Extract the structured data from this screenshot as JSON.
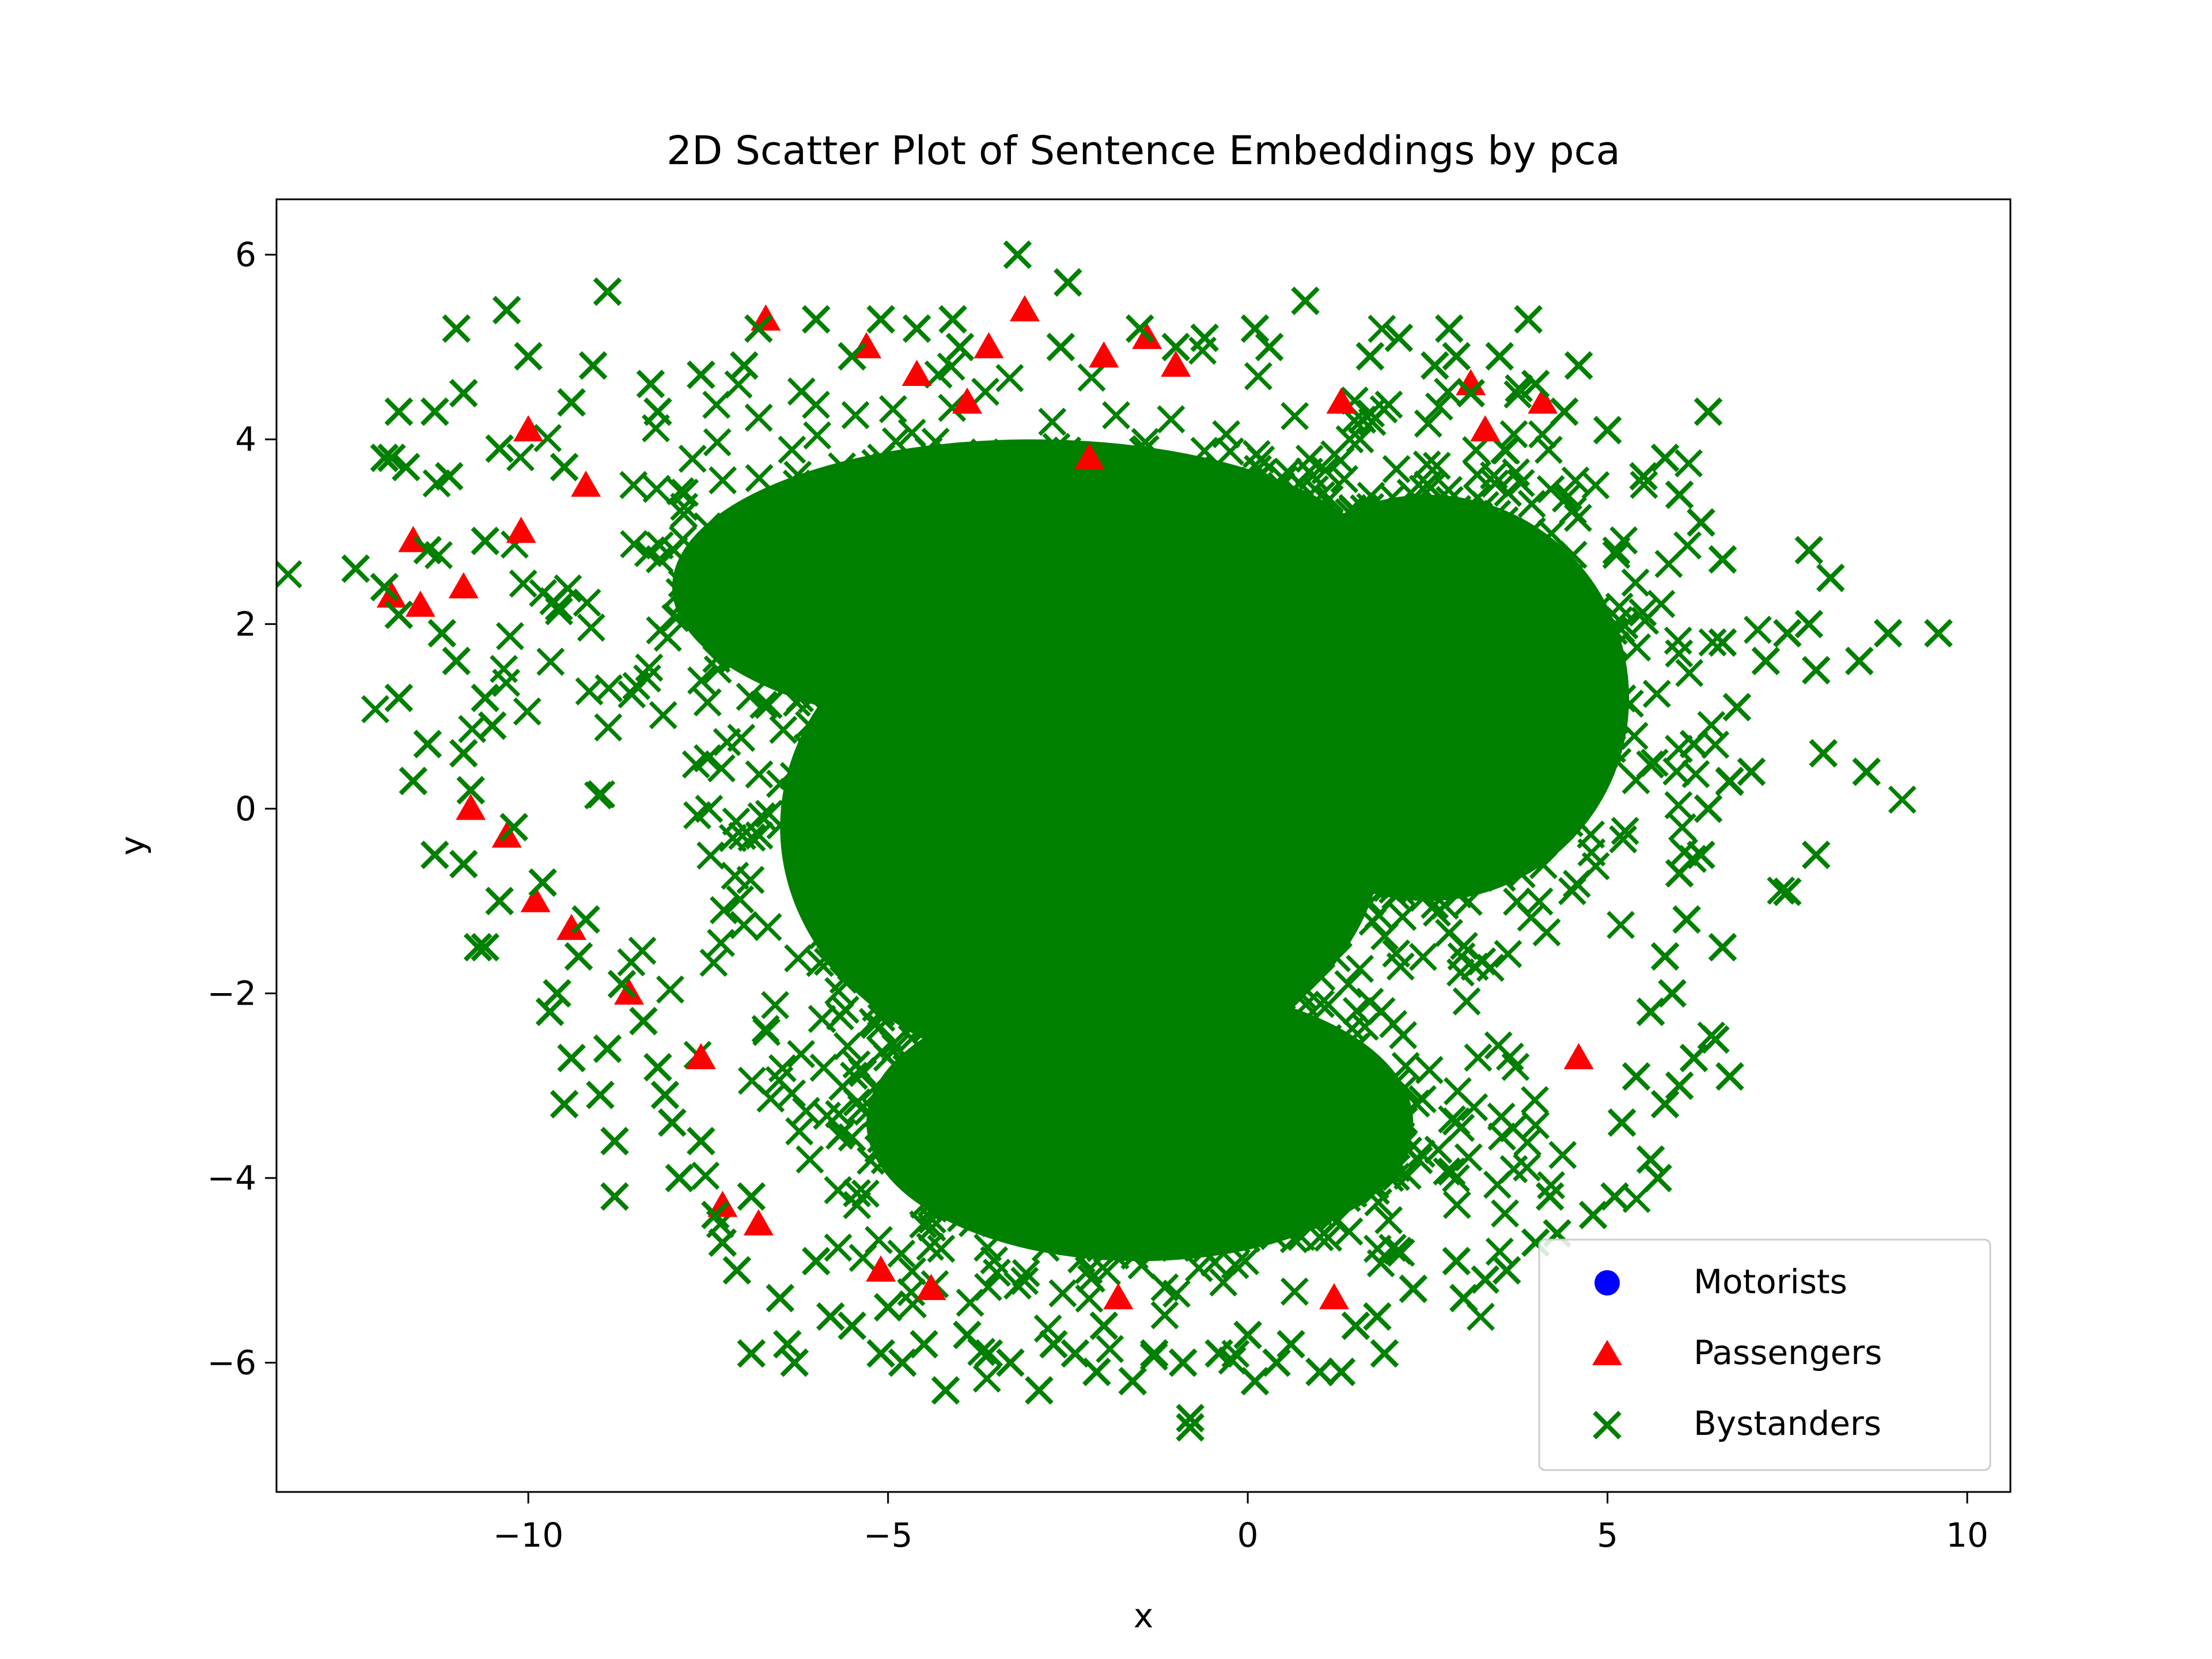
{
  "chart_data": {
    "type": "scatter",
    "title": "2D Scatter Plot of Sentence Embeddings by pca",
    "xlabel": "x",
    "ylabel": "y",
    "xlim": [
      -13.5,
      10.6
    ],
    "ylim": [
      -7.4,
      6.6
    ],
    "x_ticks": [
      -10,
      -5,
      0,
      5,
      10
    ],
    "x_tick_labels": [
      "−10",
      "−5",
      "0",
      "5",
      "10"
    ],
    "y_ticks": [
      -6,
      -4,
      -2,
      0,
      2,
      4,
      6
    ],
    "y_tick_labels": [
      "−6",
      "−4",
      "−2",
      "0",
      "2",
      "4",
      "6"
    ],
    "grid": false,
    "legend_position": "bottom-right",
    "series": [
      {
        "name": "Motorists",
        "marker": "circle",
        "color": "#0000ff",
        "points": []
      },
      {
        "name": "Passengers",
        "marker": "triangle",
        "color": "#ff0000",
        "points": [
          [
            -11.9,
            2.3
          ],
          [
            -11.5,
            2.2
          ],
          [
            -11.6,
            2.9
          ],
          [
            -10.9,
            2.4
          ],
          [
            -10.0,
            4.1
          ],
          [
            -10.1,
            3.0
          ],
          [
            -9.2,
            3.5
          ],
          [
            -6.7,
            5.3
          ],
          [
            -5.3,
            5.0
          ],
          [
            -4.6,
            4.7
          ],
          [
            -3.9,
            4.4
          ],
          [
            -3.6,
            5.0
          ],
          [
            -3.1,
            5.4
          ],
          [
            -2.0,
            4.9
          ],
          [
            -1.4,
            5.1
          ],
          [
            -1.0,
            4.8
          ],
          [
            -10.8,
            0.0
          ],
          [
            -10.3,
            -0.3
          ],
          [
            -9.9,
            -1.0
          ],
          [
            -9.4,
            -1.3
          ],
          [
            -8.6,
            -2.0
          ],
          [
            -7.6,
            -2.7
          ],
          [
            -7.3,
            -4.3
          ],
          [
            -6.8,
            -4.5
          ],
          [
            -5.1,
            -5.0
          ],
          [
            -4.4,
            -5.2
          ],
          [
            -1.8,
            -5.3
          ],
          [
            1.3,
            4.4
          ],
          [
            3.1,
            4.6
          ],
          [
            3.3,
            4.1
          ],
          [
            4.1,
            4.4
          ],
          [
            4.6,
            -2.7
          ],
          [
            1.2,
            -5.3
          ],
          [
            -2.2,
            3.8
          ]
        ]
      },
      {
        "name": "Bystanders",
        "marker": "x",
        "color": "#008000",
        "points": [
          [
            -12.4,
            2.6
          ],
          [
            -12.0,
            3.8
          ],
          [
            -11.9,
            3.8
          ],
          [
            -11.8,
            4.3
          ],
          [
            -11.7,
            3.7
          ],
          [
            -11.8,
            1.2
          ],
          [
            -11.8,
            2.1
          ],
          [
            -11.6,
            0.3
          ],
          [
            -11.4,
            0.7
          ],
          [
            -11.3,
            -0.5
          ],
          [
            -11.3,
            4.3
          ],
          [
            -11.0,
            5.2
          ],
          [
            -10.9,
            4.5
          ],
          [
            -10.3,
            5.4
          ],
          [
            -10.0,
            4.9
          ],
          [
            -9.1,
            4.8
          ],
          [
            -8.9,
            5.6
          ],
          [
            -10.7,
            -1.5
          ],
          [
            -10.6,
            -1.5
          ],
          [
            -10.6,
            1.2
          ],
          [
            -10.9,
            -0.6
          ],
          [
            -10.8,
            0.2
          ],
          [
            -9.6,
            -2.0
          ],
          [
            -9.4,
            -2.7
          ],
          [
            -9.3,
            -1.6
          ],
          [
            -9.5,
            -3.2
          ],
          [
            -9.0,
            -3.1
          ],
          [
            -8.8,
            -3.6
          ],
          [
            -8.8,
            -4.2
          ],
          [
            -8.4,
            -2.3
          ],
          [
            -8.1,
            -3.1
          ],
          [
            -7.9,
            -4.0
          ],
          [
            -7.4,
            -4.4
          ],
          [
            -7.1,
            -5.0
          ],
          [
            -6.9,
            -5.9
          ],
          [
            -6.4,
            -5.8
          ],
          [
            -6.3,
            -6.0
          ],
          [
            -5.8,
            -5.5
          ],
          [
            -5.1,
            -5.9
          ],
          [
            -4.8,
            -6.0
          ],
          [
            -4.2,
            -6.3
          ],
          [
            -3.6,
            -5.9
          ],
          [
            -2.9,
            -6.3
          ],
          [
            -2.4,
            -5.9
          ],
          [
            -2.1,
            -6.1
          ],
          [
            -1.6,
            -6.2
          ],
          [
            -0.8,
            -6.6
          ],
          [
            -0.8,
            -6.7
          ],
          [
            -0.4,
            -5.9
          ],
          [
            0.1,
            -6.2
          ],
          [
            0.6,
            -5.8
          ],
          [
            1.0,
            -6.1
          ],
          [
            1.3,
            -6.1
          ],
          [
            1.8,
            -5.5
          ],
          [
            2.3,
            -5.2
          ],
          [
            3.0,
            -5.3
          ],
          [
            3.6,
            -5.0
          ],
          [
            4.0,
            -4.7
          ],
          [
            4.3,
            -4.6
          ],
          [
            5.1,
            -4.2
          ],
          [
            5.6,
            -3.8
          ],
          [
            5.7,
            -4.0
          ],
          [
            5.8,
            -3.2
          ],
          [
            6.0,
            -3.0
          ],
          [
            5.9,
            -2.0
          ],
          [
            6.2,
            -2.7
          ],
          [
            6.5,
            -2.5
          ],
          [
            6.6,
            -1.5
          ],
          [
            6.7,
            -2.9
          ],
          [
            6.0,
            -0.7
          ],
          [
            6.3,
            -0.5
          ],
          [
            6.7,
            0.3
          ],
          [
            7.0,
            0.4
          ],
          [
            7.5,
            -0.9
          ],
          [
            7.9,
            -0.5
          ],
          [
            7.5,
            1.9
          ],
          [
            7.8,
            2.0
          ],
          [
            7.8,
            2.8
          ],
          [
            7.9,
            1.5
          ],
          [
            8.0,
            0.6
          ],
          [
            8.1,
            2.5
          ],
          [
            8.5,
            1.6
          ],
          [
            8.6,
            0.4
          ],
          [
            8.9,
            1.9
          ],
          [
            9.6,
            1.9
          ],
          [
            6.4,
            4.3
          ],
          [
            5.8,
            3.8
          ],
          [
            4.6,
            4.8
          ],
          [
            3.9,
            5.3
          ],
          [
            3.5,
            4.9
          ],
          [
            2.8,
            5.2
          ],
          [
            2.6,
            4.8
          ],
          [
            2.1,
            5.1
          ],
          [
            0.8,
            5.5
          ],
          [
            0.1,
            5.2
          ],
          [
            -0.6,
            5.1
          ],
          [
            -1.5,
            5.2
          ],
          [
            -2.5,
            5.7
          ],
          [
            -3.2,
            6.0
          ],
          [
            -4.1,
            5.3
          ],
          [
            -4.6,
            5.2
          ],
          [
            -5.1,
            5.3
          ],
          [
            -6.0,
            5.3
          ],
          [
            -6.8,
            5.2
          ],
          [
            -7.6,
            4.7
          ],
          [
            -8.3,
            4.6
          ],
          [
            -9.4,
            4.4
          ],
          [
            -10.4,
            3.9
          ],
          [
            -11.1,
            3.6
          ],
          [
            -11.4,
            2.8
          ],
          [
            -12.0,
            2.4
          ],
          [
            -11.0,
            1.6
          ],
          [
            -10.5,
            0.9
          ],
          [
            -10.2,
            -0.2
          ],
          [
            -9.8,
            -0.8
          ],
          [
            -9.2,
            -1.2
          ],
          [
            -8.7,
            -1.9
          ],
          [
            -8.2,
            -2.8
          ],
          [
            -7.6,
            -3.6
          ],
          [
            -6.9,
            -4.2
          ],
          [
            -6.0,
            -4.9
          ],
          [
            -5.0,
            -5.4
          ],
          [
            -3.9,
            -5.7
          ],
          [
            -2.7,
            -5.8
          ],
          [
            -1.3,
            -5.9
          ],
          [
            0.0,
            -5.7
          ],
          [
            1.5,
            -5.6
          ],
          [
            2.9,
            -4.9
          ],
          [
            4.2,
            -4.2
          ],
          [
            5.2,
            -3.4
          ],
          [
            5.6,
            -2.2
          ],
          [
            6.1,
            -1.2
          ],
          [
            6.4,
            0.0
          ],
          [
            6.8,
            1.1
          ],
          [
            7.2,
            1.6
          ],
          [
            6.6,
            2.7
          ],
          [
            6.0,
            3.4
          ],
          [
            5.0,
            4.1
          ],
          [
            4.0,
            4.6
          ],
          [
            2.9,
            4.9
          ],
          [
            1.7,
            4.9
          ],
          [
            0.3,
            5.0
          ],
          [
            -1.0,
            5.0
          ],
          [
            -2.6,
            5.0
          ],
          [
            -4.0,
            5.0
          ],
          [
            -5.5,
            4.9
          ],
          [
            -7.0,
            4.8
          ],
          [
            -8.2,
            4.3
          ],
          [
            -9.5,
            3.7
          ],
          [
            -10.6,
            2.9
          ],
          [
            -11.2,
            1.9
          ],
          [
            -10.9,
            0.6
          ],
          [
            -10.4,
            -1.0
          ],
          [
            -9.7,
            -2.2
          ],
          [
            -8.9,
            -2.6
          ],
          [
            -8.0,
            -3.4
          ],
          [
            -7.3,
            -4.7
          ],
          [
            -6.5,
            -5.3
          ],
          [
            -5.5,
            -5.6
          ],
          [
            -4.5,
            -5.8
          ],
          [
            -3.3,
            -6.0
          ],
          [
            -2.0,
            -5.6
          ],
          [
            -0.9,
            -6.0
          ],
          [
            0.4,
            -6.0
          ],
          [
            1.9,
            -5.9
          ],
          [
            3.3,
            -5.1
          ],
          [
            4.8,
            -4.4
          ],
          [
            5.4,
            -2.9
          ],
          [
            5.8,
            -1.6
          ],
          [
            6.2,
            0.7
          ],
          [
            6.6,
            1.8
          ],
          [
            6.3,
            3.1
          ],
          [
            5.5,
            3.6
          ],
          [
            4.4,
            4.3
          ],
          [
            3.1,
            4.5
          ]
        ]
      }
    ],
    "core_clusters": [
      {
        "series": "Bystanders",
        "center": [
          -2.3,
          -0.2
        ],
        "spread": [
          4.2,
          2.7
        ]
      },
      {
        "series": "Bystanders",
        "center": [
          -3.0,
          2.4
        ],
        "spread": [
          5.0,
          1.6
        ]
      },
      {
        "series": "Bystanders",
        "center": [
          -1.5,
          -3.4
        ],
        "spread": [
          3.8,
          1.5
        ]
      },
      {
        "series": "Bystanders",
        "center": [
          2.5,
          1.2
        ],
        "spread": [
          2.8,
          2.2
        ]
      }
    ]
  }
}
